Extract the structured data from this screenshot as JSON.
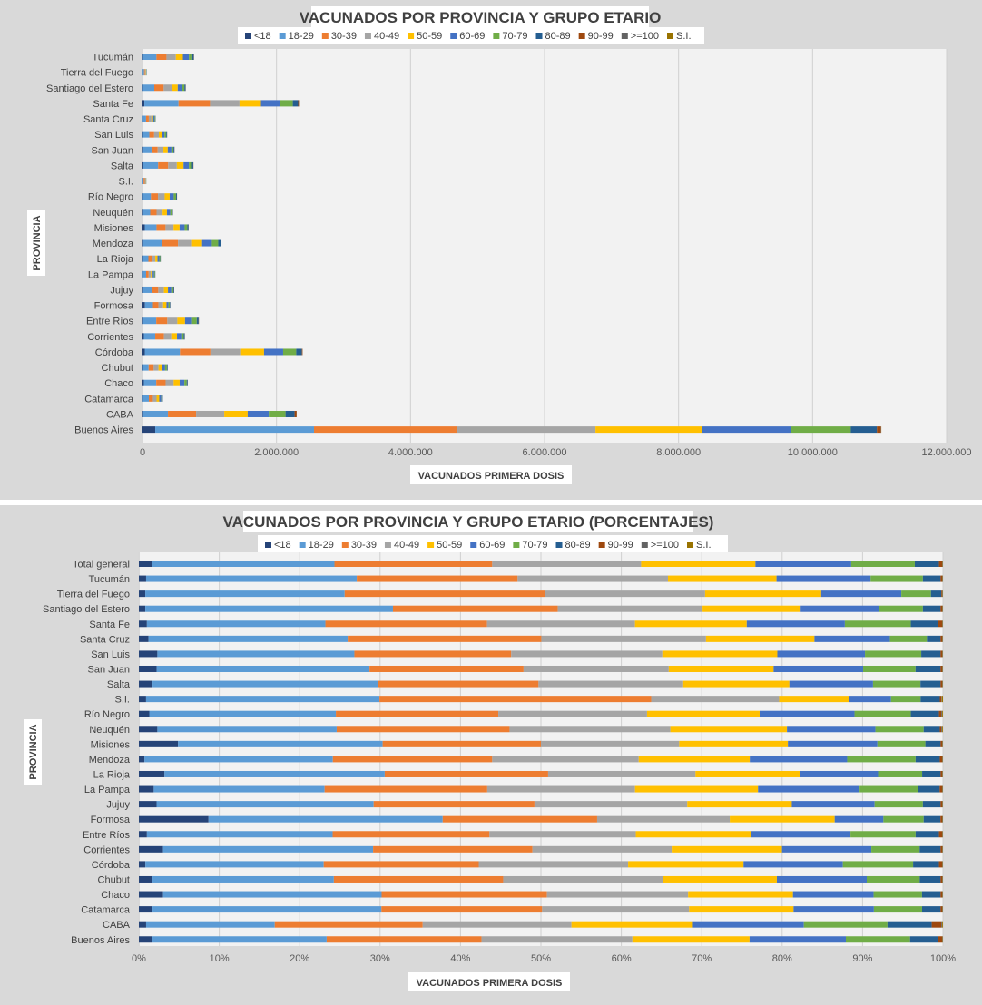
{
  "chart_data": [
    {
      "type": "bar",
      "orientation": "horizontal",
      "stacked": true,
      "title": "VACUNADOS POR PROVINCIA Y GRUPO ETARIO",
      "xlabel": "VACUNADOS PRIMERA  DOSIS",
      "ylabel": "PROVINCIA",
      "xlim": [
        0,
        12000000
      ],
      "x_ticks": [
        0,
        2000000,
        4000000,
        6000000,
        8000000,
        10000000,
        12000000
      ],
      "x_tick_labels": [
        "0",
        "2.000.000",
        "4.000.000",
        "6.000.000",
        "8.000.000",
        "10.000.000",
        "12.000.000"
      ],
      "grid": true,
      "legend_position": "top",
      "categories": [
        "Tucumán",
        "Tierra del Fuego",
        "Santiago del Estero",
        "Santa Fe",
        "Santa Cruz",
        "San Luis",
        "San Juan",
        "Salta",
        "S.I.",
        "Río Negro",
        "Neuquén",
        "Misiones",
        "Mendoza",
        "La Rioja",
        "La Pampa",
        "Jujuy",
        "Formosa",
        "Entre Ríos",
        "Corrientes",
        "Córdoba",
        "Chubut",
        "Chaco",
        "Catamarca",
        "CABA",
        "Buenos Aires"
      ],
      "series": [
        {
          "name": "<18",
          "color": "#264478",
          "values": [
            8000,
            1500,
            6000,
            28000,
            3000,
            7000,
            10000,
            13000,
            300,
            6000,
            10000,
            34000,
            10000,
            8000,
            4000,
            10000,
            36000,
            10000,
            20000,
            34000,
            7000,
            20000,
            5000,
            10000,
            190000
          ]
        },
        {
          "name": "18-29",
          "color": "#5b9bd5",
          "values": [
            200000,
            22000,
            170000,
            510000,
            50000,
            95000,
            125000,
            220000,
            16000,
            120000,
            105000,
            175000,
            280000,
            80000,
            50000,
            130000,
            120000,
            195000,
            170000,
            525000,
            85000,
            185000,
            90000,
            370000,
            2370000
          ]
        },
        {
          "name": "30-39",
          "color": "#ed7d31",
          "values": [
            150000,
            12000,
            140000,
            470000,
            41000,
            72000,
            92000,
            150000,
            19000,
            105000,
            95000,
            135000,
            240000,
            55000,
            38000,
            95000,
            82000,
            165000,
            130000,
            455000,
            75000,
            140000,
            60000,
            420000,
            2140000
          ]
        },
        {
          "name": "40-49",
          "color": "#a5a5a5",
          "values": [
            140000,
            10000,
            130000,
            440000,
            40000,
            70000,
            85000,
            130000,
            9000,
            100000,
            90000,
            120000,
            210000,
            48000,
            33000,
            85000,
            70000,
            150000,
            110000,
            445000,
            72000,
            120000,
            55000,
            420000,
            2060000
          ]
        },
        {
          "name": "50-59",
          "color": "#ffc000",
          "values": [
            105000,
            7000,
            80000,
            320000,
            25000,
            48000,
            65000,
            100000,
            5000,
            75000,
            65000,
            90000,
            150000,
            33000,
            26000,
            60000,
            50000,
            115000,
            85000,
            355000,
            50000,
            90000,
            40000,
            350000,
            1590000
          ]
        },
        {
          "name": "60-69",
          "color": "#4472c4",
          "values": [
            90000,
            6000,
            65000,
            285000,
            22000,
            37000,
            55000,
            80000,
            4000,
            60000,
            50000,
            75000,
            145000,
            27000,
            22000,
            50000,
            30000,
            105000,
            65000,
            285000,
            48000,
            70000,
            30000,
            315000,
            1330000
          ]
        },
        {
          "name": "70-79",
          "color": "#70ad47",
          "values": [
            50000,
            3000,
            35000,
            190000,
            11000,
            26000,
            30000,
            45000,
            2000,
            35000,
            27000,
            40000,
            95000,
            15000,
            13000,
            30000,
            20000,
            70000,
            35000,
            195000,
            27000,
            35000,
            16000,
            250000,
            890000
          ]
        },
        {
          "name": "80-89",
          "color": "#255e91",
          "values": [
            22000,
            1500,
            17000,
            80000,
            4000,
            12000,
            15000,
            20000,
            1200,
            13000,
            11000,
            18000,
            40000,
            6000,
            5500,
            12000,
            8000,
            28000,
            15000,
            85000,
            11000,
            14000,
            7000,
            135000,
            390000
          ]
        },
        {
          "name": "90-99",
          "color": "#9e480e",
          "values": [
            3000,
            150,
            2000,
            12000,
            600,
            1200,
            1500,
            2500,
            150,
            1500,
            1200,
            2000,
            5000,
            700,
            700,
            1500,
            1000,
            4000,
            1500,
            10000,
            1200,
            1500,
            800,
            30000,
            60000
          ]
        },
        {
          "name": ">=100",
          "color": "#636363",
          "values": [
            200,
            20,
            200,
            800,
            40,
            100,
            100,
            200,
            10,
            100,
            100,
            200,
            300,
            50,
            50,
            100,
            80,
            300,
            100,
            700,
            100,
            100,
            60,
            2000,
            4000
          ]
        },
        {
          "name": "S.I.",
          "color": "#997300",
          "values": [
            100,
            10,
            100,
            300,
            20,
            50,
            50,
            100,
            500,
            50,
            50,
            100,
            150,
            30,
            30,
            50,
            40,
            150,
            50,
            300,
            50,
            50,
            30,
            500,
            2000
          ]
        }
      ]
    },
    {
      "type": "bar",
      "orientation": "horizontal",
      "stacked": true,
      "percent": true,
      "title": "VACUNADOS POR PROVINCIA Y GRUPO ETARIO (PORCENTAJES)",
      "xlabel": "VACUNADOS PRIMERA  DOSIS",
      "ylabel": "PROVINCIA",
      "xlim": [
        0,
        100
      ],
      "x_ticks": [
        0,
        10,
        20,
        30,
        40,
        50,
        60,
        70,
        80,
        90,
        100
      ],
      "x_tick_labels": [
        "0%",
        "10%",
        "20%",
        "30%",
        "40%",
        "50%",
        "60%",
        "70%",
        "80%",
        "90%",
        "100%"
      ],
      "grid": true,
      "legend_position": "top",
      "categories": [
        "Total general",
        "Tucumán",
        "Tierra del Fuego",
        "Santiago del Estero",
        "Santa Fe",
        "Santa Cruz",
        "San Luis",
        "San Juan",
        "Salta",
        "S.I.",
        "Río Negro",
        "Neuquén",
        "Misiones",
        "Mendoza",
        "La Rioja",
        "La Pampa",
        "Jujuy",
        "Formosa",
        "Entre Ríos",
        "Corrientes",
        "Córdoba",
        "Chubut",
        "Chaco",
        "Catamarca",
        "CABA",
        "Buenos Aires"
      ],
      "series": [
        {
          "name": "<18",
          "color": "#264478",
          "values": [
            1.6,
            0.9,
            0.8,
            0.8,
            1.0,
            1.2,
            2.3,
            2.2,
            1.7,
            0.9,
            1.3,
            2.3,
            4.9,
            0.7,
            3.2,
            1.8,
            2.2,
            8.3,
            1.0,
            3.0,
            0.8,
            1.7,
            3.0,
            1.7,
            0.9,
            1.6
          ]
        },
        {
          "name": "18-29",
          "color": "#5b9bd5",
          "values": [
            22.7,
            26.2,
            24.9,
            30.8,
            22.2,
            24.8,
            24.5,
            26.4,
            28.0,
            29.2,
            23.2,
            22.3,
            25.6,
            23.4,
            27.5,
            20.7,
            27.0,
            27.9,
            23.1,
            26.1,
            22.1,
            22.6,
            27.1,
            28.5,
            16.0,
            21.8
          ]
        },
        {
          "name": "30-39",
          "color": "#ed7d31",
          "values": [
            19.6,
            20.0,
            25.0,
            20.5,
            20.1,
            24.1,
            19.5,
            19.1,
            20.0,
            34.0,
            20.2,
            21.5,
            19.8,
            19.8,
            20.4,
            19.7,
            20.0,
            18.4,
            19.5,
            19.8,
            19.2,
            21.1,
            20.5,
            20.0,
            18.4,
            19.3
          ]
        },
        {
          "name": "40-49",
          "color": "#a5a5a5",
          "values": [
            18.5,
            18.7,
            20.0,
            18.0,
            18.4,
            20.5,
            18.8,
            18.0,
            18.0,
            16.0,
            18.5,
            20.0,
            17.3,
            18.2,
            18.4,
            17.9,
            19.0,
            15.8,
            18.2,
            17.3,
            18.5,
            19.9,
            17.5,
            18.3,
            18.5,
            18.8
          ]
        },
        {
          "name": "50-59",
          "color": "#ffc000",
          "values": [
            14.2,
            13.5,
            14.5,
            12.2,
            13.9,
            13.5,
            14.3,
            13.0,
            13.2,
            8.7,
            14.0,
            14.5,
            13.6,
            13.8,
            13.0,
            14.9,
            13.0,
            12.5,
            14.3,
            13.7,
            14.3,
            14.2,
            13.0,
            13.0,
            15.1,
            14.6
          ]
        },
        {
          "name": "60-69",
          "color": "#4472c4",
          "values": [
            11.9,
            11.7,
            10.0,
            9.7,
            12.2,
            9.4,
            10.9,
            11.1,
            10.4,
            5.3,
            11.8,
            11.0,
            11.2,
            12.1,
            9.8,
            12.3,
            10.3,
            5.8,
            12.4,
            11.1,
            12.3,
            11.2,
            10.0,
            10.0,
            13.8,
            12.0
          ]
        },
        {
          "name": "70-79",
          "color": "#70ad47",
          "values": [
            7.9,
            6.5,
            3.7,
            5.5,
            8.2,
            4.6,
            7.0,
            6.5,
            5.9,
            3.7,
            7.0,
            6.0,
            6.0,
            8.5,
            5.5,
            7.1,
            6.0,
            4.8,
            8.1,
            6.0,
            8.7,
            6.6,
            6.0,
            6.0,
            10.4,
            8.0
          ]
        },
        {
          "name": "80-89",
          "color": "#255e91",
          "values": [
            3.0,
            2.2,
            1.3,
            2.2,
            3.4,
            1.7,
            2.4,
            3.1,
            2.5,
            2.4,
            3.5,
            2.0,
            1.9,
            3.0,
            2.3,
            2.6,
            2.2,
            2.0,
            2.9,
            2.6,
            3.2,
            2.6,
            2.3,
            2.3,
            5.5,
            3.5
          ]
        },
        {
          "name": "90-99",
          "color": "#9e480e",
          "values": [
            0.4,
            0.2,
            0.1,
            0.2,
            0.5,
            0.2,
            0.2,
            0.2,
            0.2,
            0.2,
            0.3,
            0.2,
            0.2,
            0.3,
            0.2,
            0.3,
            0.2,
            0.2,
            0.4,
            0.2,
            0.4,
            0.2,
            0.2,
            0.2,
            1.2,
            0.5
          ]
        },
        {
          "name": ">=100",
          "color": "#636363",
          "values": [
            0.05,
            0.05,
            0.05,
            0.05,
            0.05,
            0.05,
            0.05,
            0.05,
            0.05,
            0.05,
            0.1,
            0.1,
            0.05,
            0.05,
            0.05,
            0.05,
            0.05,
            0.05,
            0.05,
            0.05,
            0.05,
            0.05,
            0.05,
            0.05,
            0.1,
            0.05
          ]
        },
        {
          "name": "S.I.",
          "color": "#997300",
          "values": [
            0.05,
            0.05,
            0.05,
            0.05,
            0.05,
            0.05,
            0.05,
            0.05,
            0.05,
            0.15,
            0.1,
            0.1,
            0.05,
            0.05,
            0.05,
            0.05,
            0.05,
            0.05,
            0.05,
            0.05,
            0.05,
            0.05,
            0.05,
            0.05,
            0.1,
            0.05
          ]
        }
      ]
    }
  ]
}
